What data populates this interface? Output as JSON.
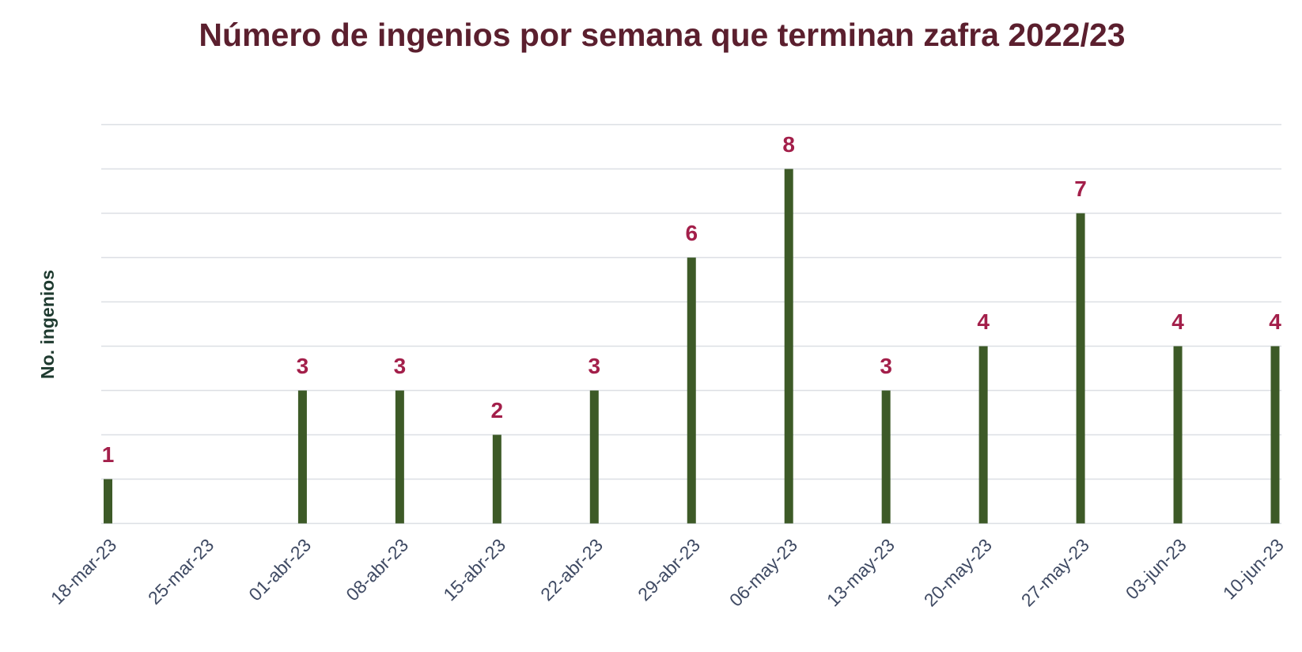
{
  "chart_data": {
    "type": "bar",
    "title": "Número de ingenios por semana que terminan zafra 2022/23",
    "y_label": "No. ingenios",
    "categories": [
      "18-mar-23",
      "25-mar-23",
      "01-abr-23",
      "08-abr-23",
      "15-abr-23",
      "22-abr-23",
      "29-abr-23",
      "06-may-23",
      "13-may-23",
      "20-may-23",
      "27-may-23",
      "03-jun-23",
      "10-jun-23"
    ],
    "values": [
      1,
      null,
      3,
      3,
      2,
      3,
      6,
      8,
      3,
      4,
      7,
      4,
      4
    ],
    "color": "#3d5a27",
    "ylim": [
      0,
      9
    ],
    "yticks": [
      0,
      1,
      2,
      3,
      4,
      5,
      6,
      7,
      8,
      9
    ],
    "grid": true
  }
}
